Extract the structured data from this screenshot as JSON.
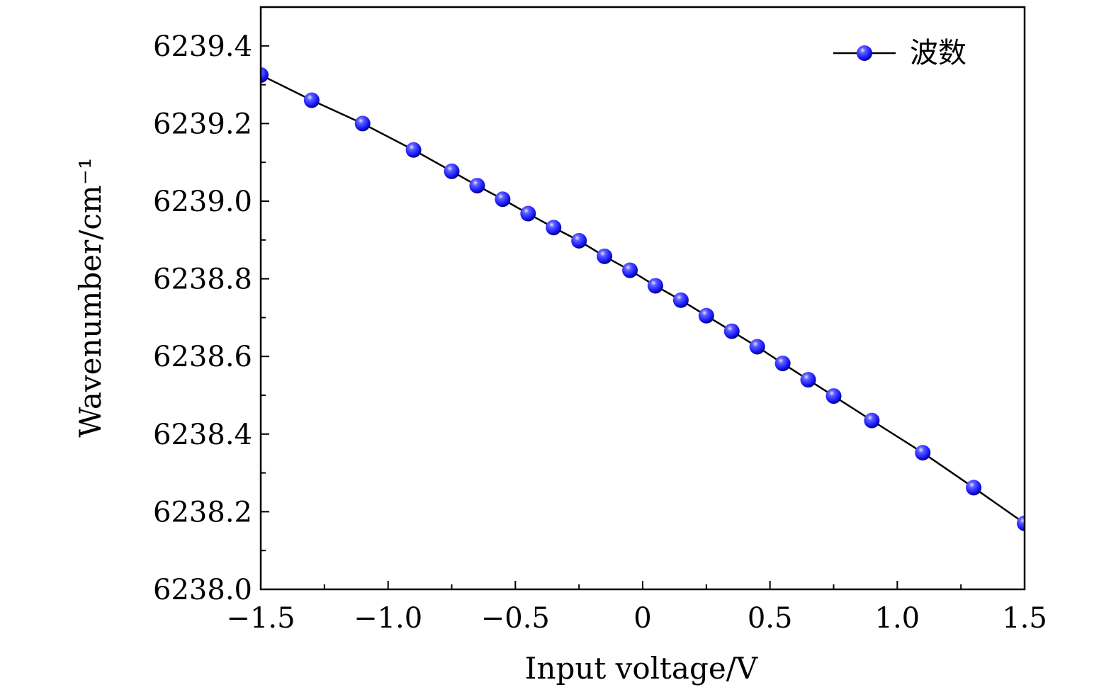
{
  "chart_data": {
    "type": "line",
    "title": "",
    "xlabel": "Input voltage/V",
    "ylabel": "Wavenumber/cm⁻¹",
    "xlim": [
      -1.5,
      1.5
    ],
    "ylim": [
      6238.0,
      6239.5
    ],
    "x_ticks": [
      -1.5,
      -1.0,
      -0.5,
      0,
      0.5,
      1.0,
      1.5
    ],
    "x_tick_labels": [
      "−1.5",
      "−1.0",
      "−0.5",
      "0",
      "0.5",
      "1.0",
      "1.5"
    ],
    "y_ticks": [
      6238.0,
      6238.2,
      6238.4,
      6238.6,
      6238.8,
      6239.0,
      6239.2,
      6239.4
    ],
    "y_tick_labels": [
      "6238.0",
      "6238.2",
      "6238.4",
      "6238.6",
      "6238.8",
      "6239.0",
      "6239.2",
      "6239.4"
    ],
    "grid": false,
    "legend_position": "top-right",
    "colors": {
      "line": "#000000",
      "marker": "#1a1aff",
      "marker_highlight": "#c8c8ff",
      "marker_dark": "#0000a0"
    },
    "series": [
      {
        "name": "波数",
        "x": [
          -1.5,
          -1.3,
          -1.1,
          -0.9,
          -0.75,
          -0.65,
          -0.55,
          -0.45,
          -0.35,
          -0.25,
          -0.15,
          -0.05,
          0.05,
          0.15,
          0.25,
          0.35,
          0.45,
          0.55,
          0.65,
          0.75,
          0.9,
          1.1,
          1.3,
          1.5
        ],
        "y": [
          6239.325,
          6239.26,
          6239.2,
          6239.132,
          6239.077,
          6239.04,
          6239.005,
          6238.968,
          6238.932,
          6238.898,
          6238.858,
          6238.822,
          6238.782,
          6238.745,
          6238.705,
          6238.665,
          6238.625,
          6238.582,
          6238.54,
          6238.498,
          6238.435,
          6238.352,
          6238.262,
          6238.17
        ]
      }
    ]
  }
}
